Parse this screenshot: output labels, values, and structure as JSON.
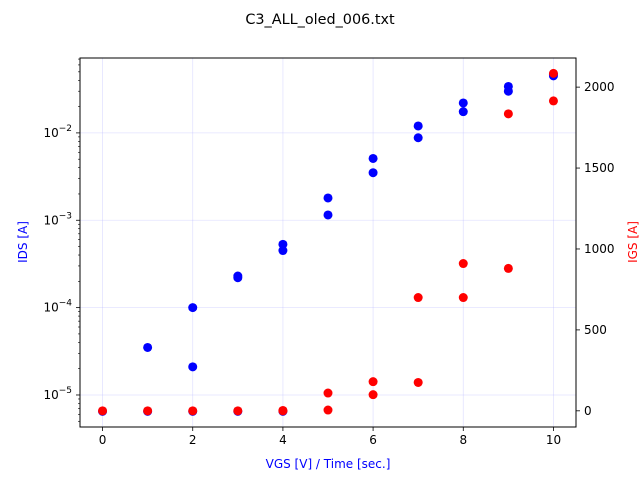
{
  "chart_data": {
    "type": "scatter",
    "title": "C3_ALL_oled_006.txt",
    "xlabel": "VGS [V] / Time [sec.]",
    "ylabel_left": "IDS [A]",
    "ylabel_right": "IGS [A]",
    "xlim": [
      -0.5,
      10.5
    ],
    "x_ticks": [
      0,
      2,
      4,
      6,
      8,
      10
    ],
    "left_axis": {
      "scale": "log",
      "ylim": [
        4.3e-06,
        0.072
      ],
      "ticks": [
        "10^-5",
        "10^-4",
        "10^-3",
        "10^-2"
      ],
      "color": "#0000ff"
    },
    "right_axis": {
      "scale": "linear",
      "ylim": [
        -100,
        2180
      ],
      "ticks": [
        0,
        500,
        1000,
        1500,
        2000
      ],
      "color": "#ff0000"
    },
    "grid": true,
    "series": [
      {
        "axis": "left",
        "color": "#0000ff",
        "points": [
          [
            0,
            6.5e-06
          ],
          [
            1,
            6.5e-06
          ],
          [
            1,
            3.5e-05
          ],
          [
            2,
            2.1e-05
          ],
          [
            2,
            0.0001
          ],
          [
            2,
            6.5e-06
          ],
          [
            3,
            0.00022
          ],
          [
            3,
            0.00023
          ],
          [
            3,
            6.5e-06
          ],
          [
            4,
            0.00045
          ],
          [
            4,
            0.00053
          ],
          [
            4,
            6.5e-06
          ],
          [
            5,
            0.00115
          ],
          [
            5,
            0.0018
          ],
          [
            6,
            0.0035
          ],
          [
            6,
            0.0051
          ],
          [
            7,
            0.0088
          ],
          [
            7,
            0.012
          ],
          [
            8,
            0.0175
          ],
          [
            8,
            0.022
          ],
          [
            9,
            0.03
          ],
          [
            9,
            0.034
          ],
          [
            10,
            0.045
          ],
          [
            10,
            0.047
          ]
        ]
      },
      {
        "axis": "right",
        "color": "#ff0000",
        "points": [
          [
            0,
            0
          ],
          [
            1,
            0
          ],
          [
            2,
            0
          ],
          [
            3,
            0
          ],
          [
            4,
            0
          ],
          [
            4,
            2
          ],
          [
            5,
            5
          ],
          [
            5,
            110
          ],
          [
            6,
            100
          ],
          [
            6,
            180
          ],
          [
            7,
            175
          ],
          [
            7,
            700
          ],
          [
            8,
            700
          ],
          [
            8,
            910
          ],
          [
            9,
            880
          ],
          [
            9,
            1835
          ],
          [
            10,
            1915
          ],
          [
            10,
            2085
          ]
        ]
      }
    ]
  }
}
